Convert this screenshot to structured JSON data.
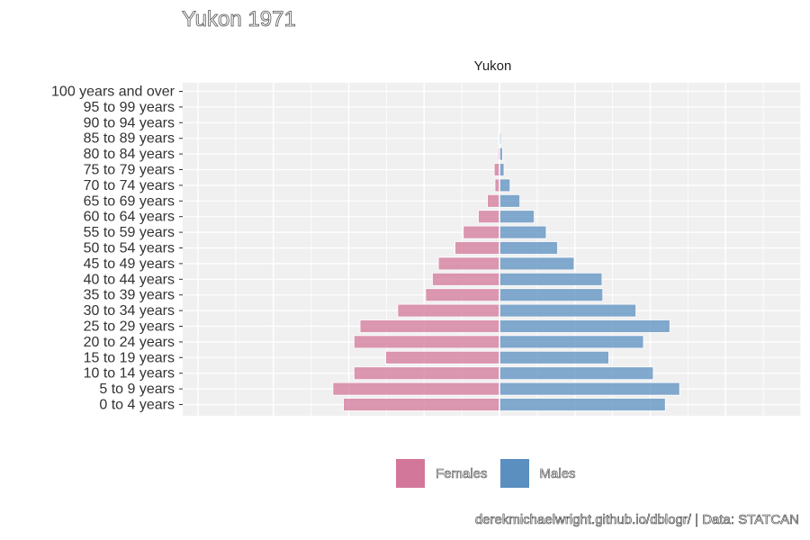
{
  "chart_title": "Yukon 1971",
  "caption": "derekmichaelwright.github.io/dblogr/ | Data: STATCAN",
  "colors": {
    "females": "#D3779A",
    "males": "#5B8FC0",
    "panel_bg": "#F0F0F0",
    "grid": "#FFFFFF"
  },
  "chart_data": {
    "type": "bar",
    "orientation": "horizontal",
    "title": "Yukon 1971",
    "facet_label": "Yukon",
    "x_range": [
      -2000,
      2000
    ],
    "grid": true,
    "legend_position": "bottom",
    "categories": [
      "0 to 4 years",
      "5 to 9 years",
      "10 to 14 years",
      "15 to 19 years",
      "20 to 24 years",
      "25 to 29 years",
      "30 to 34 years",
      "35 to 39 years",
      "40 to 44 years",
      "45 to 49 years",
      "50 to 54 years",
      "55 to 59 years",
      "60 to 64 years",
      "65 to 69 years",
      "70 to 74 years",
      "75 to 79 years",
      "80 to 84 years",
      "85 to 89 years",
      "90 to 94 years",
      "95 to 99 years",
      "100 years and over"
    ],
    "series": [
      {
        "name": "Females",
        "values": [
          1035,
          1105,
          965,
          755,
          965,
          925,
          675,
          490,
          445,
          405,
          295,
          240,
          140,
          80,
          30,
          35,
          10,
          5,
          0,
          0,
          0
        ]
      },
      {
        "name": "Males",
        "values": [
          1100,
          1195,
          1020,
          725,
          955,
          1130,
          905,
          685,
          680,
          495,
          385,
          310,
          230,
          135,
          70,
          30,
          20,
          10,
          0,
          0,
          0
        ]
      }
    ]
  }
}
